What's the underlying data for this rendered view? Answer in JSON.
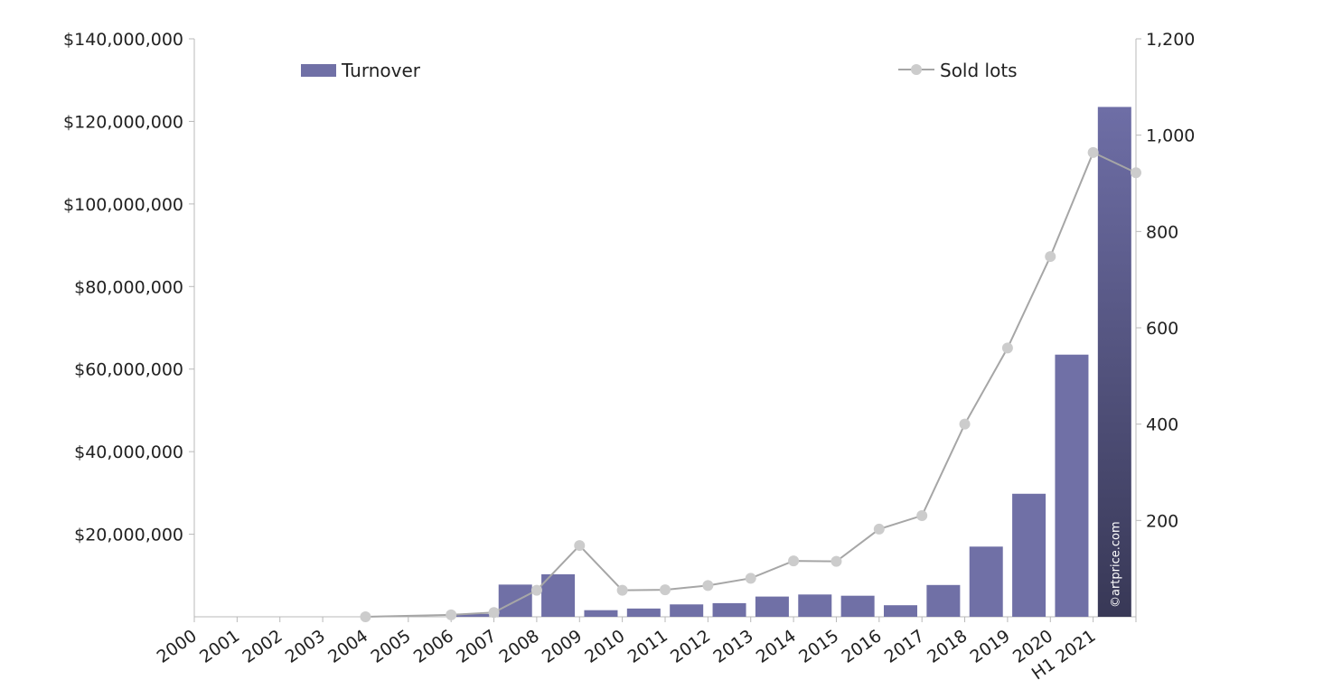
{
  "chart_data": {
    "type": "bar",
    "categories": [
      "2000",
      "2001",
      "2002",
      "2003",
      "2004",
      "2005",
      "2006",
      "2007",
      "2008",
      "2009",
      "2010",
      "2011",
      "2012",
      "2013",
      "2014",
      "2015",
      "2016",
      "2017",
      "2018",
      "2019",
      "2020",
      "H1 2021"
    ],
    "series": [
      {
        "name": "Turnover",
        "type": "bar",
        "axis": "left",
        "color": "#7070a6",
        "values": [
          0,
          0,
          0,
          0,
          0,
          0,
          700000,
          7800000,
          10300000,
          1600000,
          2000000,
          3000000,
          3300000,
          4900000,
          5400000,
          5100000,
          2800000,
          7700000,
          17000000,
          29800000,
          63500000,
          123500000
        ]
      },
      {
        "name": "Sold lots",
        "type": "line",
        "axis": "right",
        "color": "#a6a6a6",
        "marker_color": "#cccccc",
        "values": [
          null,
          null,
          null,
          0,
          null,
          4,
          9,
          55,
          148,
          55,
          56,
          65,
          80,
          116,
          115,
          182,
          210,
          400,
          558,
          748,
          964,
          922
        ]
      }
    ],
    "y_left": {
      "range": [
        0,
        140000000
      ],
      "ticks": [
        20000000,
        40000000,
        60000000,
        80000000,
        100000000,
        120000000,
        140000000
      ],
      "tick_labels": [
        "$20,000,000",
        "$40,000,000",
        "$60,000,000",
        "$80,000,000",
        "$100,000,000",
        "$120,000,000",
        "$140,000,000"
      ]
    },
    "y_right": {
      "range": [
        0,
        1200
      ],
      "ticks": [
        200,
        400,
        600,
        800,
        1000,
        1200
      ],
      "tick_labels": [
        "200",
        "400",
        "600",
        "800",
        "1,000",
        "1,200"
      ]
    },
    "legend": {
      "bar_label": "Turnover",
      "line_label": "Sold lots",
      "placement": "top"
    },
    "highlight_color_top": "#6e6ea6",
    "highlight_color_bottom": "#383856",
    "watermark": "©artprice.com",
    "grid": false
  }
}
